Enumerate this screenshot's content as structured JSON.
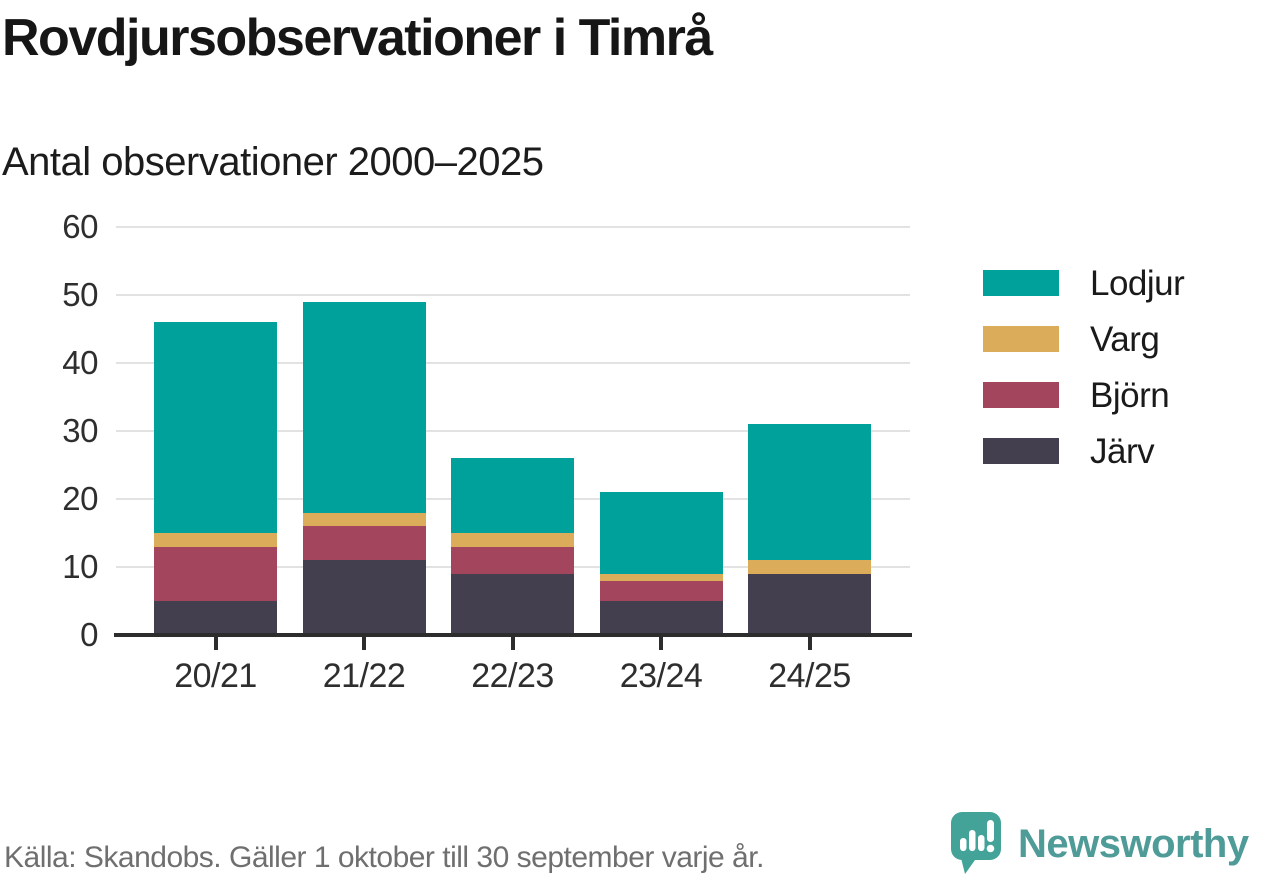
{
  "title": "Rovdjursobservationer i Timrå",
  "subtitle": "Antal observationer 2000–2025",
  "footer": {
    "source": "Källa: Skandobs. Gäller 1 oktober till 30 september varje år."
  },
  "branding": {
    "name": "Newsworthy",
    "icon": "newsworthy-speech-bubble-chart-icon",
    "text_color": "#4e9b98",
    "icon_color": "#43a399"
  },
  "chart_data": {
    "type": "bar",
    "stacked": true,
    "title": "Rovdjursobservationer i Timrå",
    "subtitle": "Antal observationer 2000–2025",
    "categories": [
      "20/21",
      "21/22",
      "22/23",
      "23/24",
      "24/25"
    ],
    "series": [
      {
        "name": "Järv",
        "color": "#433f4e",
        "values": [
          5,
          11,
          9,
          5,
          9
        ]
      },
      {
        "name": "Björn",
        "color": "#a4455e",
        "values": [
          8,
          5,
          4,
          3,
          0
        ]
      },
      {
        "name": "Varg",
        "color": "#dbad5a",
        "values": [
          2,
          2,
          2,
          1,
          2
        ]
      },
      {
        "name": "Lodjur",
        "color": "#00a09b",
        "values": [
          31,
          31,
          11,
          12,
          20
        ]
      }
    ],
    "totals": [
      46,
      49,
      26,
      21,
      31
    ],
    "legend_order": [
      "Lodjur",
      "Varg",
      "Björn",
      "Järv"
    ],
    "legend_position": "right",
    "xlabel": "",
    "ylabel": "",
    "ylim": [
      0,
      60
    ],
    "yticks": [
      0,
      10,
      20,
      30,
      40,
      50,
      60
    ],
    "grid": true
  }
}
